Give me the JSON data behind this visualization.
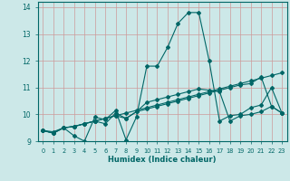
{
  "xlabel": "Humidex (Indice chaleur)",
  "x_ticks": [
    0,
    1,
    2,
    3,
    4,
    5,
    6,
    7,
    8,
    9,
    10,
    11,
    12,
    13,
    14,
    15,
    16,
    17,
    18,
    19,
    20,
    21,
    22,
    23
  ],
  "xlim": [
    -0.5,
    23.5
  ],
  "ylim": [
    9.0,
    14.2
  ],
  "y_ticks": [
    9,
    10,
    11,
    12,
    13,
    14
  ],
  "bg_color": "#cce8e8",
  "grid_color": "#aacccc",
  "line_color": "#006666",
  "lines": [
    [
      9.4,
      9.3,
      9.5,
      9.2,
      9.0,
      9.9,
      9.8,
      10.15,
      9.05,
      9.9,
      11.8,
      11.8,
      12.5,
      13.4,
      13.8,
      13.8,
      12.0,
      9.75,
      9.95,
      10.0,
      10.25,
      10.35,
      11.0,
      10.05
    ],
    [
      9.4,
      9.3,
      9.5,
      9.55,
      9.65,
      9.75,
      9.65,
      10.05,
      9.85,
      10.1,
      10.45,
      10.55,
      10.65,
      10.75,
      10.85,
      10.95,
      10.9,
      10.85,
      9.75,
      9.95,
      10.0,
      10.1,
      10.3,
      10.05
    ],
    [
      9.4,
      9.3,
      9.5,
      9.55,
      9.65,
      9.75,
      9.85,
      9.95,
      9.85,
      10.1,
      10.2,
      10.3,
      10.4,
      10.5,
      10.6,
      10.7,
      10.8,
      10.9,
      11.0,
      11.1,
      11.15,
      11.4,
      10.3,
      10.05
    ],
    [
      9.4,
      9.35,
      9.5,
      9.55,
      9.65,
      9.75,
      9.85,
      9.95,
      10.05,
      10.15,
      10.25,
      10.35,
      10.45,
      10.55,
      10.65,
      10.75,
      10.85,
      10.95,
      11.05,
      11.15,
      11.25,
      11.35,
      11.45,
      11.55
    ]
  ]
}
